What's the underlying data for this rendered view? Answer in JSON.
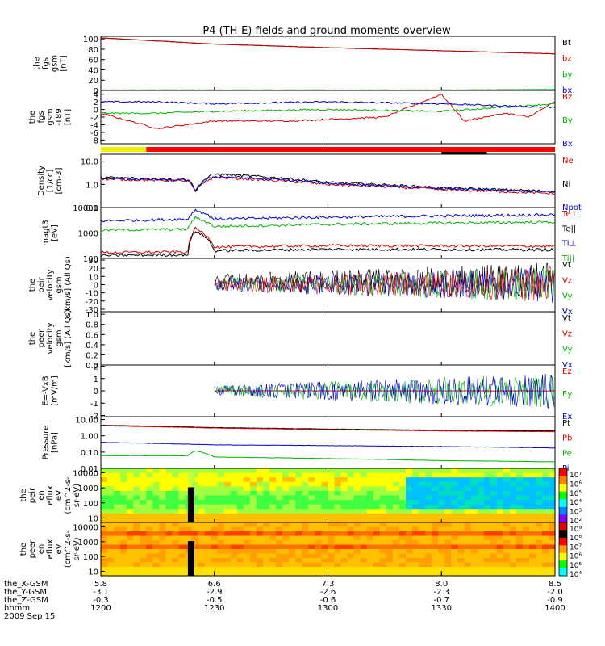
{
  "title": "P4 (TH-E) fields and ground moments overview",
  "panels": [
    {
      "id": "fgs-mag",
      "ylabel": [
        "the",
        "fgs",
        "gsm",
        "[nT]"
      ],
      "ticks": [
        "100",
        "80",
        "60",
        "40",
        "20",
        "0"
      ],
      "legend": [
        {
          "text": "Bt",
          "color": "#000000"
        },
        {
          "text": "bz",
          "color": "#d40000"
        },
        {
          "text": "by",
          "color": "#00b000"
        },
        {
          "text": "bx",
          "color": "#0000c8"
        }
      ],
      "ylim": [
        0,
        105
      ]
    },
    {
      "id": "fgs-t89",
      "ylabel": [
        "the",
        "fgs",
        "gsm",
        "-T89",
        "[nT]"
      ],
      "ticks": [
        "4",
        "2",
        "0",
        "-2",
        "-4",
        "-6",
        "-8"
      ],
      "legend": [
        {
          "text": "Bz",
          "color": "#d40000"
        },
        {
          "text": "By",
          "color": "#00b000"
        },
        {
          "text": "Bx",
          "color": "#0000c8"
        }
      ],
      "ylim": [
        -9,
        5
      ]
    },
    {
      "id": "density",
      "ylabel": [
        "Density",
        "[1/cc]",
        "[cm-3]"
      ],
      "ticks": [
        "10.0",
        "1.0",
        "0.1"
      ],
      "legend": [
        {
          "text": "Ne",
          "color": "#d40000"
        },
        {
          "text": "Ni",
          "color": "#000000"
        },
        {
          "text": "Npot",
          "color": "#0000c8"
        }
      ],
      "ylim": [
        0.1,
        20
      ],
      "log": true
    },
    {
      "id": "temperature",
      "ylabel": [
        "magt3",
        "[eV]"
      ],
      "ticks": [
        "10000",
        "1000",
        "100"
      ],
      "legend": [
        {
          "text": "Te⊥",
          "color": "#d40000"
        },
        {
          "text": "Te||",
          "color": "#000000"
        },
        {
          "text": "Ti⊥",
          "color": "#0000c8"
        },
        {
          "text": "Ti||",
          "color": "#00b000"
        }
      ],
      "ylim": [
        100,
        10000
      ],
      "log": true
    },
    {
      "id": "peir-velocity",
      "ylabel": [
        "the",
        "peir",
        "velocity",
        "gsm",
        "[km/s] (All Qs)"
      ],
      "ticks": [
        "30",
        "20",
        "10",
        "0",
        "-10",
        "-20",
        "-30"
      ],
      "legend": [
        {
          "text": "Vt",
          "color": "#000000"
        },
        {
          "text": "Vz",
          "color": "#d40000"
        },
        {
          "text": "Vy",
          "color": "#00b000"
        },
        {
          "text": "Vx",
          "color": "#0000c8"
        }
      ],
      "ylim": [
        -33,
        32
      ]
    },
    {
      "id": "peer-velocity",
      "ylabel": [
        "the",
        "peer",
        "velocity",
        "gsm",
        "[km/s] (All Qs)"
      ],
      "ticks": [
        "1.0",
        "0.8",
        "0.6",
        "0.4",
        "0.2",
        "0.0"
      ],
      "legend": [
        {
          "text": "Vt",
          "color": "#000000"
        },
        {
          "text": "Vz",
          "color": "#d40000"
        },
        {
          "text": "Vy",
          "color": "#00b000"
        },
        {
          "text": "Vx",
          "color": "#0000c8"
        }
      ],
      "ylim": [
        0,
        1.05
      ]
    },
    {
      "id": "e-field",
      "ylabel": [
        "E=-VxB",
        "[mV/m]"
      ],
      "ticks": [
        "2",
        "1",
        "0",
        "-1",
        "-2"
      ],
      "legend": [
        {
          "text": "Ez",
          "color": "#d40000"
        },
        {
          "text": "Ey",
          "color": "#00b000"
        },
        {
          "text": "Ex",
          "color": "#0000c8"
        }
      ],
      "ylim": [
        -2.1,
        2.1
      ]
    },
    {
      "id": "pressure",
      "ylabel": [
        "Pressure",
        "[nPa]"
      ],
      "ticks": [
        "10.00",
        "1.00",
        "0.10",
        "0.01"
      ],
      "legend": [
        {
          "text": "Pt",
          "color": "#000000"
        },
        {
          "text": "Pb",
          "color": "#d40000"
        },
        {
          "text": "Pe",
          "color": "#00b000"
        },
        {
          "text": "Pi",
          "color": "#0000c8"
        }
      ],
      "ylim": [
        0.01,
        15
      ],
      "log": true
    },
    {
      "id": "peir-eflux",
      "ylabel": [
        "the",
        "peir",
        "en",
        "eflux",
        "eV",
        "(cm^2-s-",
        "sr-eV)"
      ],
      "ticks": [
        "10000",
        "1000",
        "100",
        "10"
      ],
      "colorbar": [
        "10⁷",
        "10⁶",
        "10⁵",
        "10⁴",
        "10³",
        "10²"
      ],
      "ylim": [
        5,
        20000
      ],
      "log": true
    },
    {
      "id": "peer-eflux",
      "ylabel": [
        "the",
        "peer",
        "en",
        "eflux",
        "eV",
        "(cm^2-s-",
        "sr-eV)"
      ],
      "ticks": [
        "10000",
        "1000",
        "100",
        "10"
      ],
      "colorbar": [
        "10⁹",
        "10⁸",
        "10⁷",
        "10⁶",
        "10⁵",
        "10⁴"
      ],
      "ylim": [
        5,
        20000
      ],
      "log": true
    }
  ],
  "footer": {
    "rows": [
      {
        "label": "the_X-GSM",
        "values": [
          "5.8",
          "6.6",
          "7.3",
          "8.0",
          "8.5"
        ]
      },
      {
        "label": "the_Y-GSM",
        "values": [
          "-3.1",
          "-2.9",
          "-2.6",
          "-2.3",
          "-2.0"
        ]
      },
      {
        "label": "the_Z-GSM",
        "values": [
          "-0.3",
          "-0.5",
          "-0.6",
          "-0.7",
          "-0.9"
        ]
      },
      {
        "label": "hhmm",
        "values": [
          "1200",
          "1230",
          "1300",
          "1330",
          "1400"
        ]
      }
    ],
    "date": "2009 Sep 15"
  },
  "colors": {
    "black": "#000000",
    "red": "#d40000",
    "green": "#00b000",
    "blue": "#0000c8",
    "yellow": "#f0f000"
  },
  "chart_data": {
    "type": "line",
    "title": "P4 (TH-E) fields and ground moments overview",
    "x_time_hhmm": [
      "1200",
      "1230",
      "1300",
      "1330",
      "1400"
    ],
    "xlim": [
      "12:00",
      "14:00"
    ],
    "notes": "Stacked time-series panels, 2009 Sep 15, 12:00-14:00 UT",
    "series": [
      {
        "panel": "fgs-mag",
        "name": "Bt",
        "x": [
          "12:00",
          "12:30",
          "13:00",
          "13:30",
          "14:00"
        ],
        "values": [
          102,
          90,
          83,
          77,
          71
        ]
      },
      {
        "panel": "fgs-mag",
        "name": "bz",
        "x": [
          "12:00",
          "12:30",
          "13:00",
          "13:30",
          "14:00"
        ],
        "values": [
          102,
          90,
          83,
          77,
          71
        ]
      },
      {
        "panel": "fgs-mag",
        "name": "by",
        "x": [
          "12:00",
          "12:30",
          "13:00",
          "13:30",
          "14:00"
        ],
        "values": [
          1,
          1,
          1,
          1,
          2
        ]
      },
      {
        "panel": "fgs-mag",
        "name": "bx",
        "x": [
          "12:00",
          "12:30",
          "13:00",
          "13:30",
          "14:00"
        ],
        "values": [
          0,
          0,
          0,
          0,
          0
        ]
      },
      {
        "panel": "fgs-t89",
        "name": "Bz",
        "x": [
          "12:00",
          "12:15",
          "12:30",
          "12:50",
          "13:15",
          "13:30",
          "13:36",
          "13:47",
          "13:53",
          "14:00"
        ],
        "values": [
          -1,
          -5,
          -3,
          -3,
          -2,
          4,
          -3,
          -1,
          -2,
          2
        ]
      },
      {
        "panel": "fgs-t89",
        "name": "By",
        "x": [
          "12:00",
          "12:15",
          "12:30",
          "13:00",
          "13:30",
          "14:00"
        ],
        "values": [
          -1,
          -1,
          -0.5,
          0,
          -0.5,
          1.5
        ]
      },
      {
        "panel": "fgs-t89",
        "name": "Bx",
        "x": [
          "12:00",
          "12:15",
          "12:30",
          "13:00",
          "13:30",
          "14:00"
        ],
        "values": [
          2,
          2,
          1.5,
          2,
          1.5,
          0.5
        ]
      },
      {
        "panel": "density",
        "name": "Ni",
        "x": [
          "12:00",
          "12:23",
          "12:25",
          "12:30",
          "13:00",
          "13:30",
          "14:00"
        ],
        "values": [
          2.0,
          1.6,
          0.5,
          2.8,
          1.2,
          0.7,
          0.5
        ]
      },
      {
        "panel": "density",
        "name": "Ne",
        "x": [
          "12:00",
          "12:23",
          "12:25",
          "12:30",
          "13:00",
          "13:30",
          "14:00"
        ],
        "values": [
          1.7,
          1.4,
          0.45,
          2.0,
          1.0,
          0.6,
          0.4
        ]
      },
      {
        "panel": "density",
        "name": "Npot",
        "x": [
          "12:00",
          "12:23",
          "12:25",
          "12:30",
          "13:00",
          "13:30",
          "14:00"
        ],
        "values": [
          1.8,
          1.5,
          0.5,
          2.2,
          1.1,
          0.65,
          0.45
        ]
      },
      {
        "panel": "temperature",
        "name": "Ti⊥",
        "x": [
          "12:00",
          "12:23",
          "12:25",
          "12:30",
          "13:00",
          "14:00"
        ],
        "values": [
          3000,
          3500,
          8000,
          3500,
          4200,
          5200
        ]
      },
      {
        "panel": "temperature",
        "name": "Ti||",
        "x": [
          "12:00",
          "12:23",
          "12:25",
          "12:30",
          "13:00",
          "14:00"
        ],
        "values": [
          1300,
          1400,
          4000,
          1800,
          2200,
          2700
        ]
      },
      {
        "panel": "temperature",
        "name": "Te⊥",
        "x": [
          "12:00",
          "12:23",
          "12:25",
          "12:30",
          "13:00",
          "14:00"
        ],
        "values": [
          170,
          180,
          1500,
          280,
          320,
          300
        ]
      },
      {
        "panel": "temperature",
        "name": "Te||",
        "x": [
          "12:00",
          "12:23",
          "12:25",
          "12:30",
          "13:00",
          "14:00"
        ],
        "values": [
          130,
          140,
          1200,
          200,
          230,
          220
        ]
      },
      {
        "panel": "e-field",
        "name": "Ez",
        "x": [
          "12:30",
          "14:00"
        ],
        "values": [
          0,
          0
        ]
      },
      {
        "panel": "pressure",
        "name": "Pt",
        "x": [
          "12:00",
          "12:30",
          "13:00",
          "13:30",
          "14:00"
        ],
        "values": [
          4.5,
          3.2,
          2.6,
          2.2,
          2.0
        ]
      },
      {
        "panel": "pressure",
        "name": "Pb",
        "x": [
          "12:00",
          "12:30",
          "13:00",
          "13:30",
          "14:00"
        ],
        "values": [
          4.2,
          3.0,
          2.4,
          2.0,
          1.8
        ]
      },
      {
        "panel": "pressure",
        "name": "Pi",
        "x": [
          "12:00",
          "12:30",
          "13:00",
          "13:30",
          "14:00"
        ],
        "values": [
          0.4,
          0.28,
          0.25,
          0.22,
          0.18
        ]
      },
      {
        "panel": "pressure",
        "name": "Pe",
        "x": [
          "12:00",
          "12:23",
          "12:25",
          "12:30",
          "13:00",
          "13:30",
          "14:00"
        ],
        "values": [
          0.06,
          0.06,
          0.12,
          0.05,
          0.04,
          0.03,
          0.025
        ]
      }
    ]
  }
}
